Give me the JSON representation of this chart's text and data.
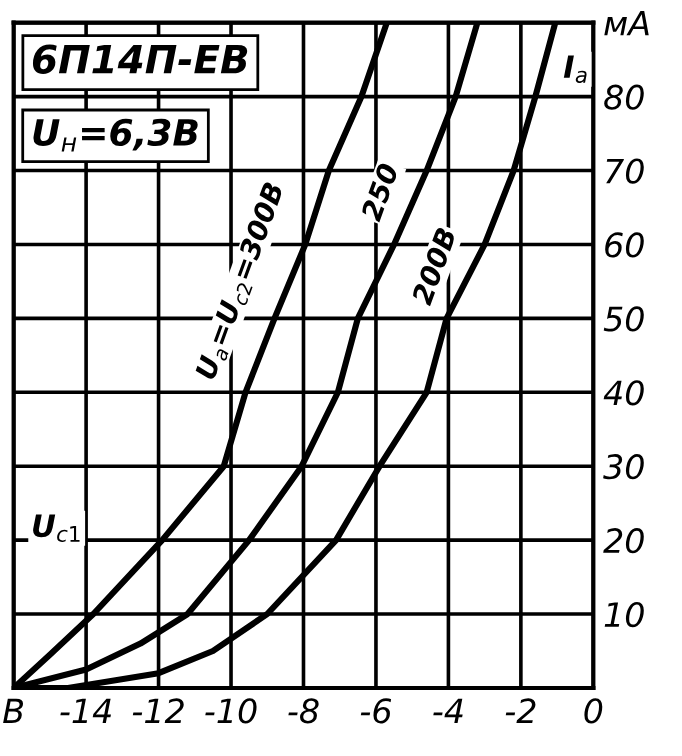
{
  "chart_data": {
    "type": "line",
    "annotations": [
      "6П14П-ЕВ",
      "U$_{н}$=6,3В",
      "I$_{a}$",
      "U$_{c1}$"
    ],
    "series": [
      {
        "name": "U$_{a}$=U$_{c2}$=300В",
        "color": "#000000",
        "x": [
          -16,
          -15,
          -13.8,
          -11.9,
          -10.2,
          -9.6,
          -8.8,
          -7.95,
          -7.3,
          -6.4,
          -5.7
        ],
        "values": [
          0,
          4.5,
          10,
          20,
          30,
          40,
          50,
          60,
          70,
          80,
          90
        ]
      },
      {
        "name": "250",
        "color": "#000000",
        "x": [
          -16,
          -14,
          -12.5,
          -11.2,
          -9.5,
          -8.05,
          -7.05,
          -6.5,
          -5.5,
          -4.6,
          -3.8,
          -3.2
        ],
        "values": [
          0,
          2.5,
          6,
          10,
          20,
          30,
          40,
          50,
          60,
          70,
          80,
          90
        ]
      },
      {
        "name": "200В",
        "color": "#000000",
        "x": [
          -16,
          -14.5,
          -12,
          -10.5,
          -9.0,
          -7.1,
          -5.9,
          -4.6,
          -4.05,
          -3.0,
          -2.2,
          -1.6,
          -1.05
        ],
        "values": [
          0,
          0,
          2,
          5,
          10,
          20,
          30,
          40,
          50,
          60,
          70,
          80,
          90
        ]
      }
    ],
    "xlim": [
      -16,
      0
    ],
    "xticks": [
      {
        "value": -16,
        "label": "В"
      },
      -14,
      -12,
      -10,
      -8,
      -6,
      -4,
      -2,
      0
    ],
    "ylim": [
      0,
      90
    ],
    "yticks": [
      10,
      20,
      30,
      40,
      50,
      60,
      70,
      80,
      {
        "value": 90,
        "label": "мА"
      }
    ],
    "grid": true,
    "legend": false,
    "marker": "none",
    "line_style": "solid"
  }
}
